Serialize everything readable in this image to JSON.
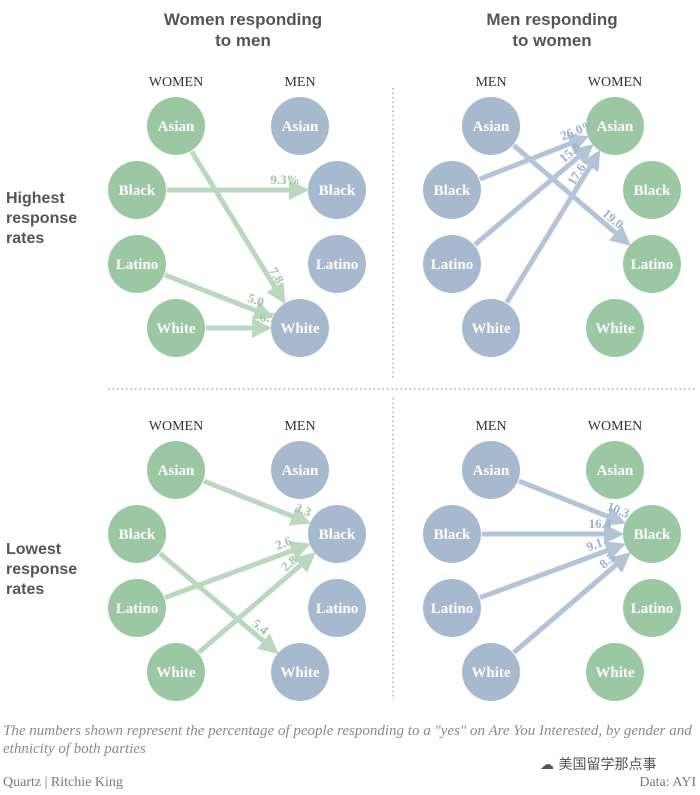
{
  "colors": {
    "women": "#9cc7a3",
    "men": "#a6b9cf",
    "women_arrow": "#b9d8bd",
    "men_arrow": "#b4c4d8",
    "women_label": "#a3c4a7",
    "men_label": "#9fb2c8",
    "title": "#555555",
    "col_header": "#333333"
  },
  "titles": {
    "left": [
      "Women responding",
      "to men"
    ],
    "right": [
      "Men responding",
      "to women"
    ]
  },
  "rows": {
    "top": [
      "Highest",
      "response",
      "rates"
    ],
    "bottom": [
      "Lowest",
      "response",
      "rates"
    ]
  },
  "ethnicities": [
    "Asian",
    "Black",
    "Latino",
    "White"
  ],
  "panels": [
    {
      "id": "women-to-men-highest",
      "col_left": "WOMEN",
      "col_right": "MEN",
      "left_group": "women",
      "right_group": "men",
      "direction": "left-to-right",
      "links": [
        {
          "from": "Asian",
          "to": "White",
          "value": "7.8"
        },
        {
          "from": "Black",
          "to": "Black",
          "value": "9.3%"
        },
        {
          "from": "Latino",
          "to": "White",
          "value": "5.0"
        },
        {
          "from": "White",
          "to": "White",
          "value": "6.7"
        }
      ]
    },
    {
      "id": "men-to-women-highest",
      "col_left": "MEN",
      "col_right": "WOMEN",
      "left_group": "men",
      "right_group": "women",
      "direction": "left-to-right",
      "links": [
        {
          "from": "Black",
          "to": "Asian",
          "value": "26.0%"
        },
        {
          "from": "Latino",
          "to": "Asian",
          "value": "15.8"
        },
        {
          "from": "White",
          "to": "Asian",
          "value": "17.6"
        },
        {
          "from": "Asian",
          "to": "Latino",
          "value": "19.0"
        }
      ]
    },
    {
      "id": "women-to-men-lowest",
      "col_left": "WOMEN",
      "col_right": "MEN",
      "left_group": "women",
      "right_group": "men",
      "direction": "left-to-right",
      "links": [
        {
          "from": "Asian",
          "to": "Black",
          "value": "3.3"
        },
        {
          "from": "Latino",
          "to": "Black",
          "value": "2.6"
        },
        {
          "from": "White",
          "to": "Black",
          "value": "2.8"
        },
        {
          "from": "Black",
          "to": "White",
          "value": "5.4"
        }
      ]
    },
    {
      "id": "men-to-women-lowest",
      "col_left": "MEN",
      "col_right": "WOMEN",
      "left_group": "men",
      "right_group": "women",
      "direction": "left-to-right",
      "links": [
        {
          "from": "Asian",
          "to": "Black",
          "value": "10.3"
        },
        {
          "from": "Black",
          "to": "Black",
          "value": "16.4"
        },
        {
          "from": "Latino",
          "to": "Black",
          "value": "9.1"
        },
        {
          "from": "White",
          "to": "Black",
          "value": "8.5"
        }
      ]
    }
  ],
  "caption": "The numbers shown represent the percentage of people responding to a \"yes\" on Are You Interested, by gender and ethnicity of both parties",
  "credit": "Quartz | Ritchie King",
  "source": "Data: AYI",
  "watermark": "美国留学那点事"
}
